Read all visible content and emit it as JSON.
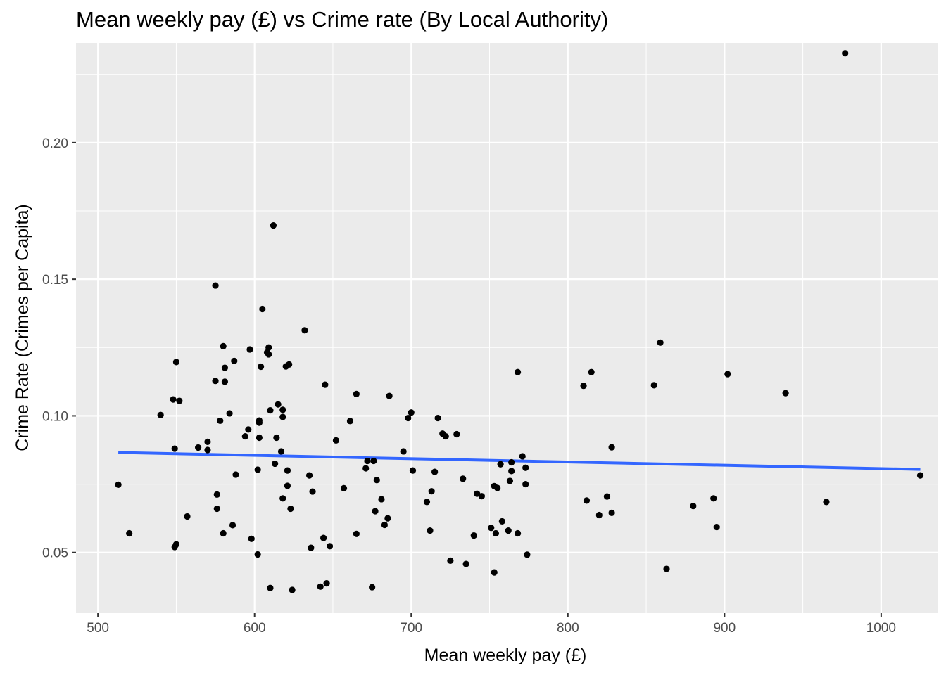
{
  "chart_data": {
    "type": "scatter",
    "title": "Mean weekly pay (£) vs Crime rate (By Local Authority)",
    "xlabel": "Mean weekly pay (£)",
    "ylabel": "Crime Rate (Crimes per Capita)",
    "xlim": [
      486,
      1036
    ],
    "ylim": [
      0.0278,
      0.2365
    ],
    "x_ticks": [
      500,
      600,
      700,
      800,
      900,
      1000
    ],
    "y_ticks": [
      0.05,
      0.1,
      0.15,
      0.2
    ],
    "x_tick_labels": [
      "500",
      "600",
      "700",
      "800",
      "900",
      "1000"
    ],
    "y_tick_labels": [
      "0.05",
      "0.10",
      "0.15",
      "0.20"
    ],
    "grid": true,
    "background": "#ebebeb",
    "point_color": "#000000",
    "trend_color": "#3366ff",
    "trend_line": {
      "x": [
        513,
        1025
      ],
      "y": [
        0.0866,
        0.0804
      ]
    },
    "points": [
      [
        513,
        0.0748
      ],
      [
        520,
        0.057
      ],
      [
        540,
        0.1003
      ],
      [
        548,
        0.106
      ],
      [
        549,
        0.052
      ],
      [
        549,
        0.088
      ],
      [
        550,
        0.1197
      ],
      [
        550,
        0.053
      ],
      [
        552,
        0.1055
      ],
      [
        557,
        0.0632
      ],
      [
        564,
        0.0884
      ],
      [
        570,
        0.0905
      ],
      [
        570,
        0.0875
      ],
      [
        575,
        0.1477
      ],
      [
        575,
        0.1128
      ],
      [
        576,
        0.0712
      ],
      [
        576,
        0.066
      ],
      [
        578,
        0.0982
      ],
      [
        580,
        0.1255
      ],
      [
        580,
        0.057
      ],
      [
        581,
        0.1176
      ],
      [
        581,
        0.1125
      ],
      [
        584,
        0.1009
      ],
      [
        586,
        0.06
      ],
      [
        587,
        0.1201
      ],
      [
        588,
        0.0785
      ],
      [
        594,
        0.0925
      ],
      [
        596,
        0.095
      ],
      [
        597,
        0.1243
      ],
      [
        598,
        0.055
      ],
      [
        602,
        0.0493
      ],
      [
        602,
        0.0803
      ],
      [
        603,
        0.0983
      ],
      [
        603,
        0.0975
      ],
      [
        603,
        0.092
      ],
      [
        604,
        0.118
      ],
      [
        605,
        0.1391
      ],
      [
        608,
        0.1232
      ],
      [
        609,
        0.125
      ],
      [
        609,
        0.1225
      ],
      [
        610,
        0.102
      ],
      [
        610,
        0.037
      ],
      [
        612,
        0.1697
      ],
      [
        613,
        0.0825
      ],
      [
        614,
        0.092
      ],
      [
        615,
        0.1042
      ],
      [
        617,
        0.087
      ],
      [
        618,
        0.0996
      ],
      [
        618,
        0.1022
      ],
      [
        618,
        0.0698
      ],
      [
        620,
        0.1181
      ],
      [
        621,
        0.08
      ],
      [
        621,
        0.0744
      ],
      [
        622,
        0.1188
      ],
      [
        623,
        0.066
      ],
      [
        624,
        0.0363
      ],
      [
        632,
        0.1313
      ],
      [
        635,
        0.0782
      ],
      [
        636,
        0.0517
      ],
      [
        637,
        0.0723
      ],
      [
        642,
        0.0375
      ],
      [
        644,
        0.0553
      ],
      [
        645,
        0.1114
      ],
      [
        646,
        0.0387
      ],
      [
        648,
        0.0523
      ],
      [
        652,
        0.091
      ],
      [
        657,
        0.0735
      ],
      [
        661,
        0.0981
      ],
      [
        665,
        0.0568
      ],
      [
        665,
        0.108
      ],
      [
        671,
        0.0808
      ],
      [
        672,
        0.0835
      ],
      [
        675,
        0.0373
      ],
      [
        676,
        0.0835
      ],
      [
        677,
        0.0651
      ],
      [
        678,
        0.0765
      ],
      [
        681,
        0.0695
      ],
      [
        683,
        0.0601
      ],
      [
        685,
        0.0625
      ],
      [
        686,
        0.1073
      ],
      [
        695,
        0.087
      ],
      [
        698,
        0.0992
      ],
      [
        700,
        0.1012
      ],
      [
        701,
        0.08
      ],
      [
        710,
        0.0685
      ],
      [
        712,
        0.058
      ],
      [
        713,
        0.0724
      ],
      [
        715,
        0.0795
      ],
      [
        717,
        0.0992
      ],
      [
        720,
        0.0935
      ],
      [
        722,
        0.0925
      ],
      [
        725,
        0.047
      ],
      [
        729,
        0.0933
      ],
      [
        733,
        0.077
      ],
      [
        735,
        0.0458
      ],
      [
        740,
        0.0562
      ],
      [
        742,
        0.0715
      ],
      [
        745,
        0.0706
      ],
      [
        751,
        0.059
      ],
      [
        753,
        0.0427
      ],
      [
        753,
        0.0743
      ],
      [
        754,
        0.057
      ],
      [
        755,
        0.0736
      ],
      [
        757,
        0.0823
      ],
      [
        758,
        0.0614
      ],
      [
        762,
        0.058
      ],
      [
        763,
        0.0762
      ],
      [
        764,
        0.0798
      ],
      [
        764,
        0.083
      ],
      [
        768,
        0.116
      ],
      [
        768,
        0.057
      ],
      [
        771,
        0.0852
      ],
      [
        773,
        0.081
      ],
      [
        773,
        0.075
      ],
      [
        774,
        0.0492
      ],
      [
        810,
        0.111
      ],
      [
        812,
        0.069
      ],
      [
        815,
        0.116
      ],
      [
        820,
        0.0637
      ],
      [
        825,
        0.0705
      ],
      [
        828,
        0.0645
      ],
      [
        828,
        0.0885
      ],
      [
        855,
        0.1112
      ],
      [
        859,
        0.1268
      ],
      [
        863,
        0.044
      ],
      [
        880,
        0.067
      ],
      [
        893,
        0.0698
      ],
      [
        895,
        0.0593
      ],
      [
        902,
        0.1153
      ],
      [
        939,
        0.1083
      ],
      [
        965,
        0.0685
      ],
      [
        977,
        0.2327
      ],
      [
        1025,
        0.0782
      ]
    ]
  }
}
